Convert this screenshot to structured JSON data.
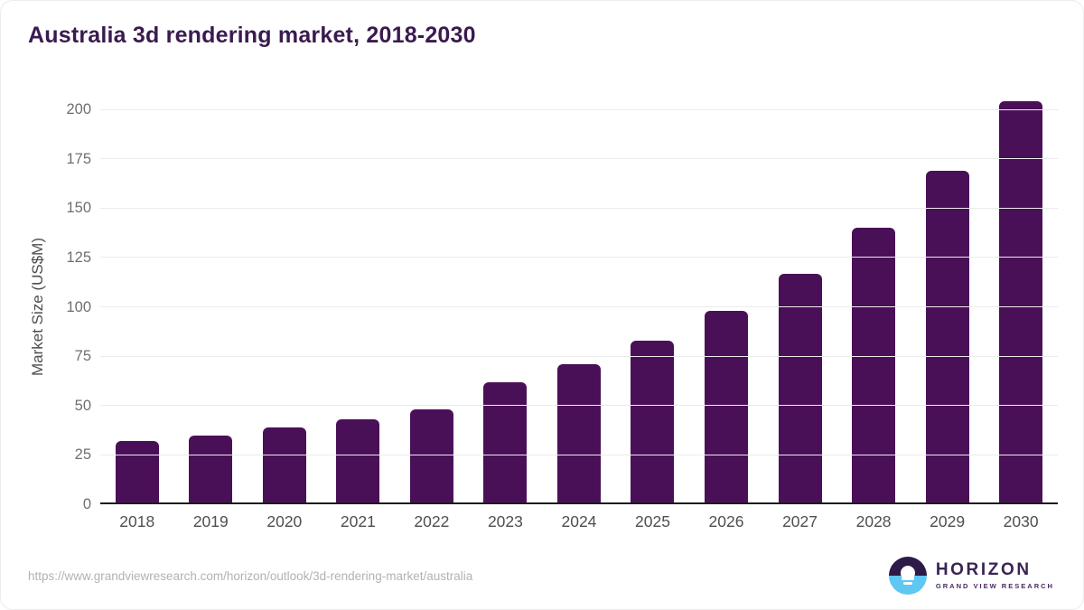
{
  "chart_data": {
    "type": "bar",
    "title": "Australia 3d rendering market, 2018-2030",
    "xlabel": "",
    "ylabel": "Market Size (US$M)",
    "categories": [
      "2018",
      "2019",
      "2020",
      "2021",
      "2022",
      "2023",
      "2024",
      "2025",
      "2026",
      "2027",
      "2028",
      "2029",
      "2030"
    ],
    "values": [
      31,
      34,
      38,
      42,
      47,
      61,
      70,
      82,
      97,
      116,
      139,
      168,
      203
    ],
    "ylim": [
      0,
      200
    ],
    "ytick_step": 25,
    "ytick_labels": [
      "0",
      "25",
      "50",
      "75",
      "100",
      "125",
      "150",
      "175",
      "200"
    ],
    "grid": true,
    "legend": "none",
    "bar_color": "#4a1057",
    "axis_line_color": "#1c1c1c",
    "gridline_color": "#ebebeb",
    "title_color": "#3a1a4f"
  },
  "footer": {
    "source_url": "https://www.grandviewresearch.com/horizon/outlook/3d-rendering-market/australia",
    "logo": {
      "brand": "HORIZON",
      "subtext": "GRAND VIEW RESEARCH",
      "icon_colors": {
        "top": "#2d1a47",
        "bottom": "#5ec7f2"
      }
    }
  }
}
